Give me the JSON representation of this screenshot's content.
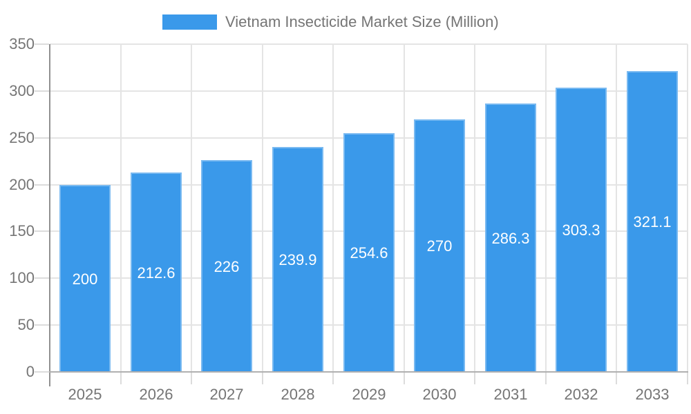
{
  "chart_data": {
    "type": "bar",
    "title": "Vietnam Insecticide Market Size (Million)",
    "legend_label": "Vietnam Insecticide Market Size (Million)",
    "legend_position": "top",
    "categories": [
      "2025",
      "2026",
      "2027",
      "2028",
      "2029",
      "2030",
      "2031",
      "2032",
      "2033"
    ],
    "series": [
      {
        "name": "Vietnam Insecticide Market Size (Million)",
        "values": [
          200,
          212.6,
          226,
          239.9,
          254.6,
          270,
          286.3,
          303.3,
          321.1
        ]
      }
    ],
    "value_labels": [
      "200",
      "212.6",
      "226",
      "239.9",
      "254.6",
      "270",
      "286.3",
      "303.3",
      "321.1"
    ],
    "xlabel": "",
    "ylabel": "",
    "ylim": [
      0,
      350
    ],
    "yticks": [
      0,
      50,
      100,
      150,
      200,
      250,
      300,
      350
    ],
    "grid": true,
    "colors": {
      "bar_fill": "#3A99EA",
      "bar_stroke_highlight": "rgba(255,255,255,0.33)",
      "value_label": "#FFFFFF",
      "axis_text": "#757575",
      "gridline": "#E4E4E4",
      "tick": "#DCDCDC",
      "y_axis_line": "#909090",
      "x_axis_line": "#B0B0B0",
      "background": "#FFFFFF"
    }
  }
}
